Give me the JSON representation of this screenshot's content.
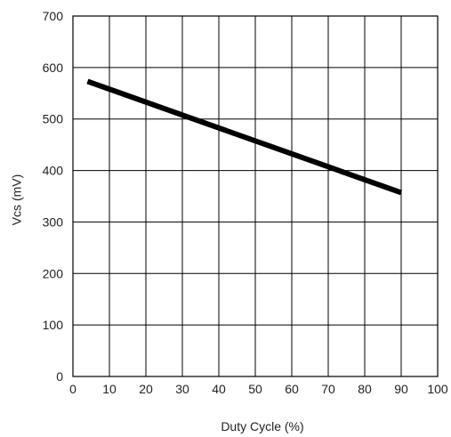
{
  "chart_data": {
    "type": "line",
    "title": "",
    "xlabel": "Duty Cycle (%)",
    "ylabel": "Vcs (mV)",
    "xlim": [
      0,
      100
    ],
    "ylim": [
      0,
      700
    ],
    "x_ticks": [
      0,
      10,
      20,
      30,
      40,
      50,
      60,
      70,
      80,
      90,
      100
    ],
    "y_ticks": [
      0,
      100,
      200,
      300,
      400,
      500,
      600,
      700
    ],
    "x_tick_labels": [
      "0",
      "10",
      "20",
      "30",
      "40",
      "50",
      "60",
      "70",
      "80",
      "90",
      "100"
    ],
    "y_tick_labels": [
      "0",
      "100",
      "200",
      "300",
      "400",
      "500",
      "600",
      "700"
    ],
    "grid": true,
    "series": [
      {
        "color": "#000000",
        "x": [
          4,
          90
        ],
        "y": [
          573,
          357
        ]
      }
    ]
  }
}
